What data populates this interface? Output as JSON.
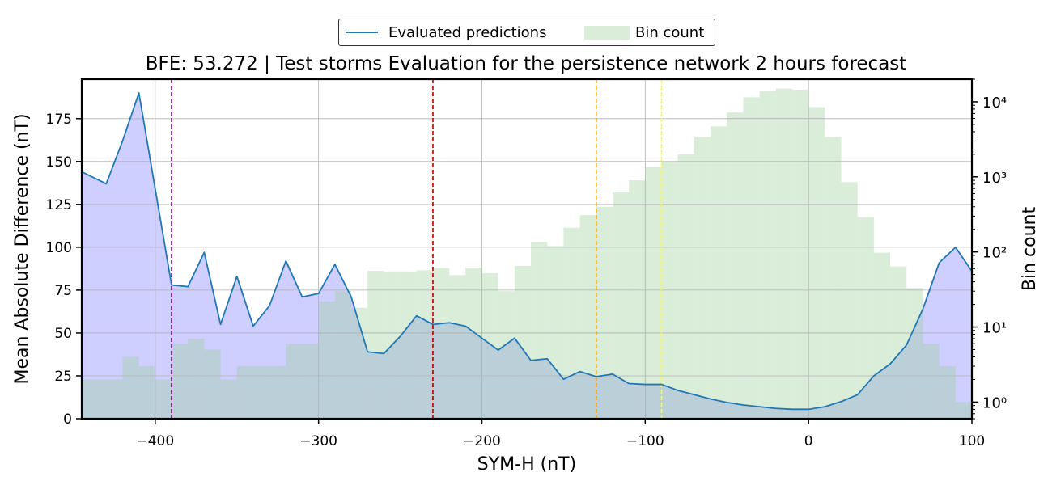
{
  "legend": {
    "line_label": "Evaluated predictions",
    "bar_label": "Bin count"
  },
  "colors": {
    "line": "#1f77b4",
    "mae_fill": "#c9c9ff",
    "bin_fill": "#a0d2a0",
    "vlines": [
      "#800080",
      "#aa0000",
      "#e69a1a",
      "#ffff22"
    ]
  },
  "chart_data": {
    "type": "line",
    "title": "BFE: 53.272 | Test storms Evaluation for the persistence network 2 hours forecast",
    "xlabel": "SYM-H (nT)",
    "ylabel": "Mean Absolute Difference (nT)",
    "y2label": "Bin count",
    "xlim": [
      -445,
      100
    ],
    "ylim": [
      0,
      198
    ],
    "y2lim_log": [
      0.6,
      20000
    ],
    "grid": true,
    "legend_position": "top-center",
    "x_ticks": [
      -400,
      -300,
      -200,
      -100,
      0,
      100
    ],
    "x_tick_labels": [
      "−400",
      "−300",
      "−200",
      "−100",
      "0",
      "100"
    ],
    "y_ticks": [
      0,
      25,
      50,
      75,
      100,
      125,
      150,
      175
    ],
    "y_tick_labels": [
      "0",
      "25",
      "50",
      "75",
      "100",
      "125",
      "150",
      "175"
    ],
    "y2_ticks": [
      1,
      10,
      100,
      1000,
      10000
    ],
    "y2_tick_labels": [
      "10⁰",
      "10¹",
      "10²",
      "10³",
      "10⁴"
    ],
    "series": [
      {
        "name": "Evaluated predictions",
        "kind": "line",
        "x": [
          -445,
          -430,
          -420,
          -410,
          -400,
          -390,
          -380,
          -370,
          -360,
          -350,
          -340,
          -330,
          -320,
          -310,
          -300,
          -290,
          -280,
          -270,
          -260,
          -250,
          -240,
          -230,
          -220,
          -210,
          -200,
          -190,
          -180,
          -170,
          -160,
          -150,
          -140,
          -130,
          -120,
          -110,
          -100,
          -90,
          -80,
          -70,
          -60,
          -50,
          -40,
          -30,
          -20,
          -10,
          0,
          10,
          20,
          30,
          40,
          50,
          60,
          70,
          80,
          90,
          100
        ],
        "y": [
          144,
          137,
          162,
          190,
          134,
          78,
          77,
          97,
          55,
          83,
          54,
          66,
          92,
          71,
          73,
          90,
          71,
          39,
          38,
          48,
          60,
          55,
          56,
          54,
          47,
          40,
          47,
          34,
          35,
          23,
          27.5,
          24.5,
          26,
          20.5,
          20,
          20,
          16.5,
          14,
          11.5,
          9.5,
          8,
          7,
          6,
          5.5,
          5.5,
          7,
          10,
          14,
          25,
          32,
          43,
          64,
          91,
          100,
          86
        ]
      },
      {
        "name": "Bin count",
        "kind": "histogram",
        "bin_edges": [
          -445,
          -430,
          -420,
          -410,
          -400,
          -390,
          -380,
          -370,
          -360,
          -350,
          -340,
          -330,
          -320,
          -310,
          -300,
          -290,
          -280,
          -270,
          -260,
          -250,
          -240,
          -230,
          -220,
          -210,
          -200,
          -190,
          -180,
          -170,
          -160,
          -150,
          -140,
          -130,
          -120,
          -110,
          -100,
          -90,
          -80,
          -70,
          -60,
          -50,
          -40,
          -30,
          -20,
          -10,
          0,
          10,
          20,
          30,
          40,
          50,
          60,
          70,
          80,
          90,
          100
        ],
        "counts": [
          2,
          2,
          4,
          3,
          2,
          6,
          7,
          5,
          2,
          3,
          3,
          3,
          6,
          6,
          22,
          30,
          18,
          56,
          55,
          55,
          57,
          61,
          49,
          62,
          52,
          30,
          65,
          135,
          120,
          210,
          310,
          400,
          620,
          900,
          1350,
          1600,
          2000,
          3400,
          4700,
          7200,
          11500,
          14000,
          15000,
          14500,
          8500,
          3400,
          850,
          290,
          98,
          64,
          33,
          6,
          3,
          1
        ]
      }
    ],
    "vertical_lines": [
      {
        "x": -390,
        "color": "#800080"
      },
      {
        "x": -230,
        "color": "#aa0000"
      },
      {
        "x": -130,
        "color": "#e69a1a"
      },
      {
        "x": -90,
        "color": "#ffff22"
      }
    ]
  }
}
